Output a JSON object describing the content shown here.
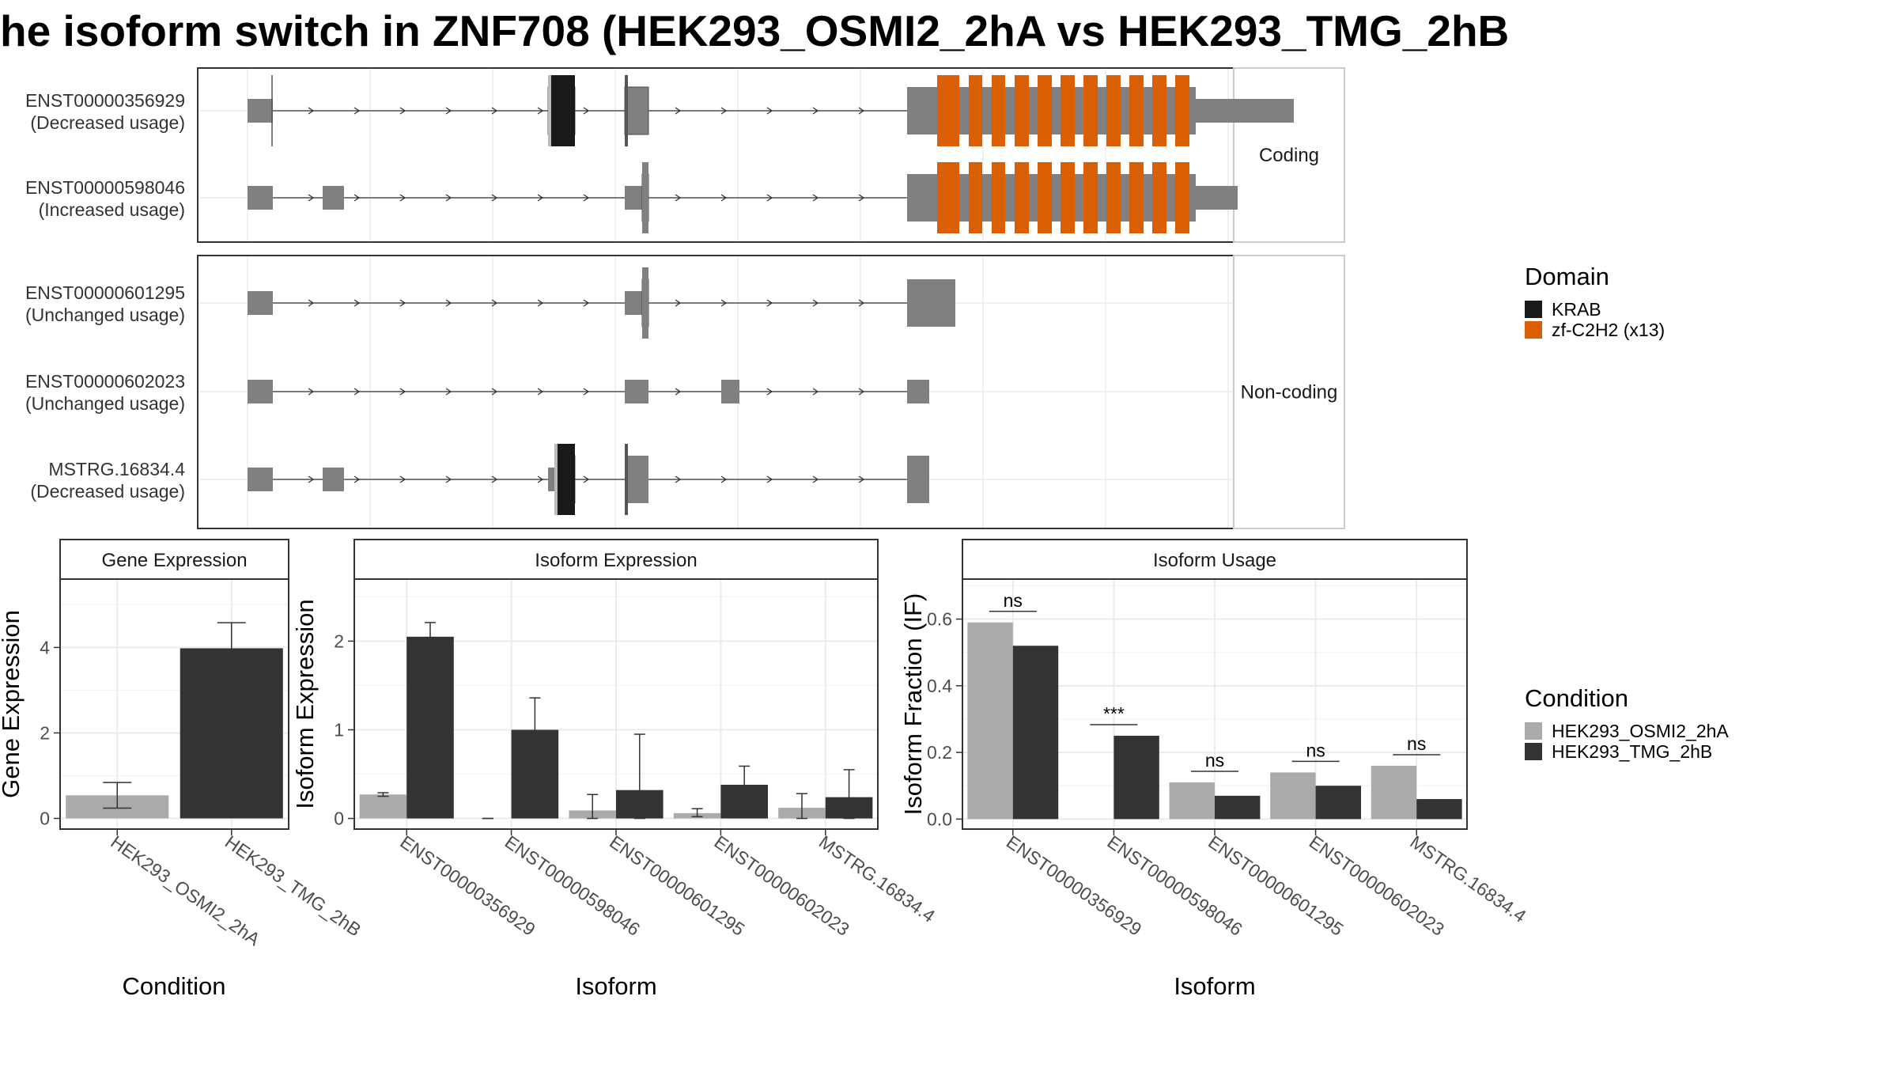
{
  "title": "he isoform switch in ZNF708 (HEK293_OSMI2_2hA vs HEK293_TMG_2hB",
  "colors": {
    "exon": "#808080",
    "krab": "#1a1a1a",
    "zf": "#d95f02",
    "cond_a": "#aaaaaa",
    "cond_b": "#333333",
    "panel_border": "#333333",
    "strip_fill": "#ffffff",
    "grid": "#ebebeb"
  },
  "structure": {
    "strips": [
      "Coding",
      "Non-coding"
    ],
    "isoforms": [
      {
        "id": "ENST00000356929",
        "usage": "(Decreased usage)",
        "group": 0
      },
      {
        "id": "ENST00000598046",
        "usage": "(Increased usage)",
        "group": 0
      },
      {
        "id": "ENST00000601295",
        "usage": "(Unchanged usage)",
        "group": 1
      },
      {
        "id": "ENST00000602023",
        "usage": "(Unchanged usage)",
        "group": 1
      },
      {
        "id": "MSTRG.16834.4",
        "usage": "(Decreased usage)",
        "group": 1
      }
    ]
  },
  "domain_legend": {
    "title": "Domain",
    "items": [
      {
        "label": "KRAB",
        "color_key": "krab"
      },
      {
        "label": "zf-C2H2 (x13)",
        "color_key": "zf"
      }
    ]
  },
  "condition_legend": {
    "title": "Condition",
    "items": [
      "HEK293_OSMI2_2hA",
      "HEK293_TMG_2hB"
    ]
  },
  "chart_data": [
    {
      "type": "bar",
      "title": "Gene Expression",
      "xlabel": "Condition",
      "ylabel": "Gene Expression",
      "categories": [
        "HEK293_OSMI2_2hA",
        "HEK293_TMG_2hB"
      ],
      "values": [
        0.54,
        3.98
      ],
      "error_low": [
        0.24,
        3.38
      ],
      "error_high": [
        0.84,
        4.58
      ],
      "ylim": [
        -0.25,
        5.6
      ],
      "yticks": [
        0,
        2,
        4
      ]
    },
    {
      "type": "bar",
      "title": "Isoform Expression",
      "xlabel": "Isoform",
      "ylabel": "Isoform Expression",
      "categories": [
        "ENST00000356929",
        "ENST00000598046",
        "ENST00000601295",
        "ENST00000602023",
        "MSTRG.16834.4"
      ],
      "series": [
        {
          "name": "HEK293_OSMI2_2hA",
          "values": [
            0.27,
            0.0,
            0.09,
            0.06,
            0.12
          ],
          "error_low": [
            0.25,
            0.0,
            0.0,
            0.02,
            0.0
          ],
          "error_high": [
            0.29,
            0.0,
            0.27,
            0.11,
            0.28
          ]
        },
        {
          "name": "HEK293_TMG_2hB",
          "values": [
            2.05,
            1.0,
            0.32,
            0.38,
            0.24
          ],
          "error_low": [
            1.9,
            0.63,
            0.0,
            0.18,
            0.0
          ],
          "error_high": [
            2.21,
            1.36,
            0.95,
            0.59,
            0.55
          ]
        }
      ],
      "ylim": [
        -0.12,
        2.7
      ],
      "yticks": [
        0,
        1,
        2
      ]
    },
    {
      "type": "bar",
      "title": "Isoform Usage",
      "xlabel": "Isoform",
      "ylabel": "Isoform Fraction (IF)",
      "categories": [
        "ENST00000356929",
        "ENST00000598046",
        "ENST00000601295",
        "ENST00000602023",
        "MSTRG.16834.4"
      ],
      "series": [
        {
          "name": "HEK293_OSMI2_2hA",
          "values": [
            0.59,
            0.0,
            0.11,
            0.14,
            0.16
          ]
        },
        {
          "name": "HEK293_TMG_2hB",
          "values": [
            0.52,
            0.25,
            0.07,
            0.1,
            0.06
          ]
        }
      ],
      "significance": [
        "ns",
        "***",
        "ns",
        "ns",
        "ns"
      ],
      "ylim": [
        -0.03,
        0.72
      ],
      "yticks": [
        0.0,
        0.2,
        0.4,
        0.6
      ]
    }
  ]
}
